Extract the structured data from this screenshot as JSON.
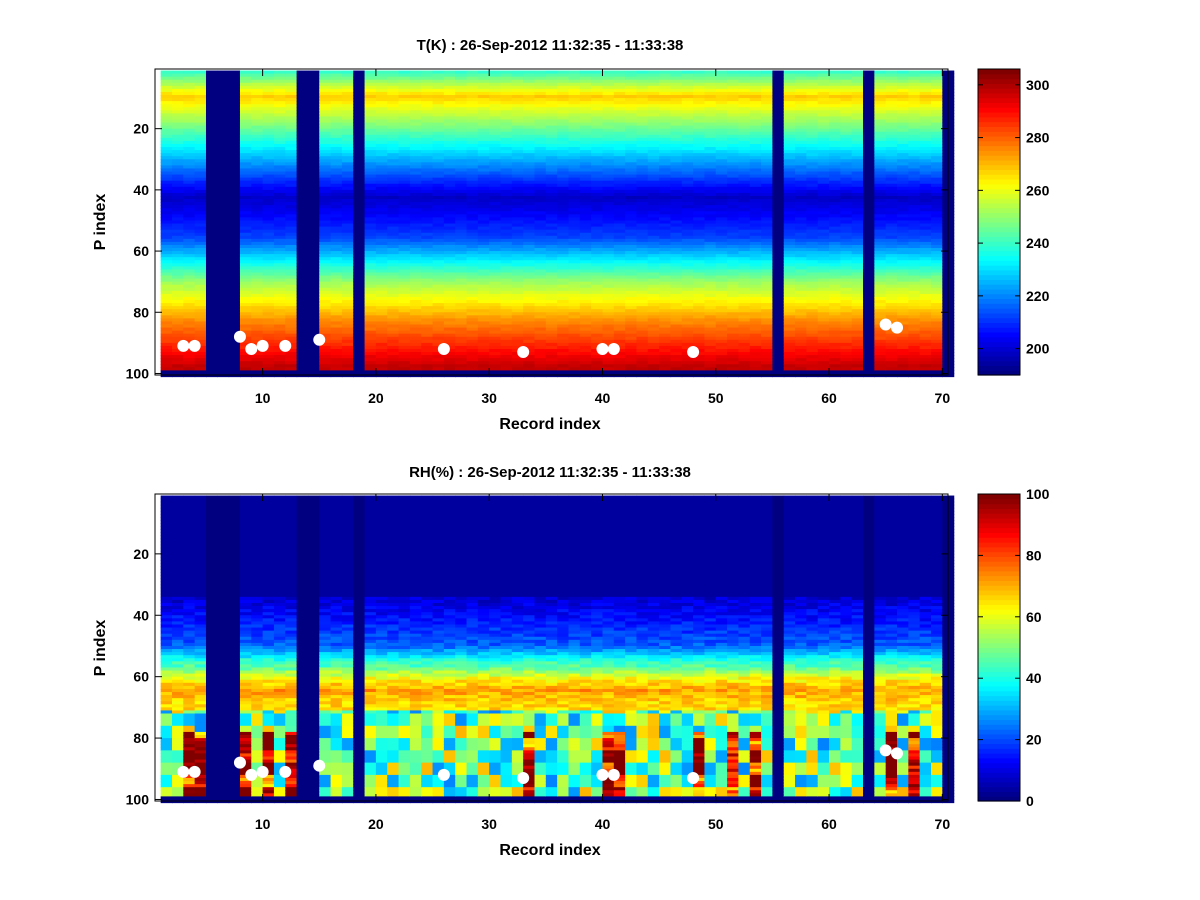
{
  "chart_data": [
    {
      "type": "heatmap",
      "id": "temperature",
      "title": "T(K) : 26-Sep-2012 11:32:35 - 11:33:38",
      "xlabel": "Record index",
      "ylabel": "P index",
      "xlim": [
        0.5,
        70.5
      ],
      "ylim": [
        0.5,
        100.5
      ],
      "x_reversed": false,
      "y_reversed": true,
      "xticks": [
        10,
        20,
        30,
        40,
        50,
        60,
        70
      ],
      "yticks": [
        20,
        40,
        60,
        80,
        100
      ],
      "colorbar": {
        "min": 190,
        "max": 306,
        "ticks": [
          200,
          220,
          240,
          260,
          280,
          300
        ],
        "colormap": "jet"
      },
      "missing_records": [
        5,
        6,
        7,
        13,
        14,
        18,
        55,
        63,
        70
      ],
      "profile_shape": {
        "top_value": 236,
        "band_level": 9,
        "band_value": 268,
        "min_level": 42,
        "min_value": 198,
        "rise_levels": [
          55,
          70,
          82,
          92,
          97
        ],
        "rise_values": [
          212,
          252,
          275,
          290,
          298
        ]
      },
      "points": [
        {
          "x": 3,
          "y": 91
        },
        {
          "x": 4,
          "y": 91
        },
        {
          "x": 8,
          "y": 88
        },
        {
          "x": 9,
          "y": 92
        },
        {
          "x": 10,
          "y": 91
        },
        {
          "x": 12,
          "y": 91
        },
        {
          "x": 15,
          "y": 89
        },
        {
          "x": 26,
          "y": 92
        },
        {
          "x": 33,
          "y": 93
        },
        {
          "x": 40,
          "y": 92
        },
        {
          "x": 41,
          "y": 92
        },
        {
          "x": 48,
          "y": 93
        },
        {
          "x": 65,
          "y": 84
        },
        {
          "x": 66,
          "y": 85
        }
      ]
    },
    {
      "type": "heatmap",
      "id": "humidity",
      "title": "RH(%) : 26-Sep-2012 11:32:35 - 11:33:38",
      "xlabel": "Record index",
      "ylabel": "P index",
      "xlim": [
        0.5,
        70.5
      ],
      "ylim": [
        0.5,
        100.5
      ],
      "x_reversed": false,
      "y_reversed": true,
      "xticks": [
        10,
        20,
        30,
        40,
        50,
        60,
        70
      ],
      "yticks": [
        20,
        40,
        60,
        80,
        100
      ],
      "colorbar": {
        "min": 0,
        "max": 100,
        "ticks": [
          0,
          20,
          40,
          60,
          80,
          100
        ],
        "colormap": "jet"
      },
      "missing_records": [
        5,
        6,
        7,
        13,
        14,
        18,
        55,
        63,
        70
      ],
      "profile_shape": {
        "dry_above_level": 33,
        "dry_value": 3,
        "moist_band_levels": [
          56,
          60,
          64,
          68
        ],
        "moist_band_values": [
          45,
          62,
          72,
          66
        ],
        "lower_mean": 42,
        "wet_records": [
          3,
          4,
          8,
          10,
          12,
          33,
          40,
          41,
          48,
          51,
          53,
          65,
          67
        ]
      },
      "points": [
        {
          "x": 3,
          "y": 91
        },
        {
          "x": 4,
          "y": 91
        },
        {
          "x": 8,
          "y": 88
        },
        {
          "x": 9,
          "y": 92
        },
        {
          "x": 10,
          "y": 91
        },
        {
          "x": 12,
          "y": 91
        },
        {
          "x": 15,
          "y": 89
        },
        {
          "x": 26,
          "y": 92
        },
        {
          "x": 33,
          "y": 93
        },
        {
          "x": 40,
          "y": 92
        },
        {
          "x": 41,
          "y": 92
        },
        {
          "x": 48,
          "y": 93
        },
        {
          "x": 65,
          "y": 84
        },
        {
          "x": 66,
          "y": 85
        }
      ]
    }
  ]
}
